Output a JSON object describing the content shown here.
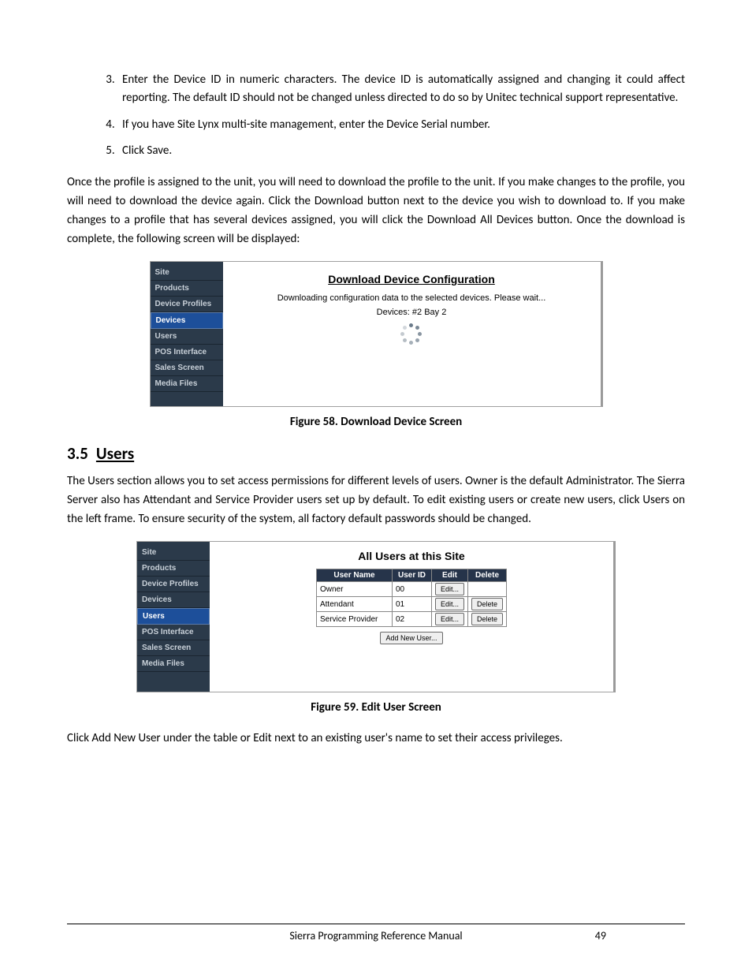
{
  "list": {
    "start": 3,
    "item3": "Enter the Device ID in numeric characters. The device ID is automatically assigned and changing it could affect reporting. The default ID should not be changed unless directed to do so by Unitec technical support representative.",
    "item4": "If you have Site Lynx multi-site management, enter the Device Serial number.",
    "item5": "Click Save."
  },
  "para1": "Once the profile is assigned to the unit, you will need to download the profile to the unit. If you make changes to the profile, you will need to download the device again. Click the Download button next to the device you wish to download to. If you make changes to a profile that has several devices assigned, you will click the Download All Devices button. Once the download is complete, the following screen will be displayed:",
  "fig58": {
    "sidebar": {
      "items": [
        "Site",
        "Products",
        "Device Profiles",
        "Devices",
        "Users",
        "POS Interface",
        "Sales Screen",
        "Media Files"
      ],
      "active_index": 3
    },
    "title": "Download Device Configuration",
    "message": "Downloading configuration data to the selected devices. Please wait...",
    "devices_line": "Devices:  #2 Bay 2",
    "caption": "Figure 58. Download Device Screen"
  },
  "section": {
    "num": "3.5",
    "title": "Users"
  },
  "para2": "The Users section allows you to set access permissions for different levels of users. Owner is the default Administrator. The Sierra Server also has Attendant and Service Provider users set up by default. To edit existing users or create new users, click Users on the left frame. To ensure security of the system, all factory default passwords should be changed.",
  "fig59": {
    "sidebar": {
      "items": [
        "Site",
        "Products",
        "Device Profiles",
        "Devices",
        "Users",
        "POS Interface",
        "Sales Screen",
        "Media Files"
      ],
      "active_index": 4
    },
    "title": "All Users at this Site",
    "columns": [
      "User Name",
      "User ID",
      "Edit",
      "Delete"
    ],
    "rows": [
      {
        "name": "Owner",
        "id": "00",
        "edit": "Edit...",
        "delete": ""
      },
      {
        "name": "Attendant",
        "id": "01",
        "edit": "Edit...",
        "delete": "Delete"
      },
      {
        "name": "Service Provider",
        "id": "02",
        "edit": "Edit...",
        "delete": "Delete"
      }
    ],
    "add_btn": "Add New User...",
    "caption": "Figure 59. Edit User Screen"
  },
  "para3": "Click Add New User under the table or Edit next to an existing user's name to set their access privileges.",
  "footer": {
    "title": "Sierra Programming Reference Manual",
    "page": "49"
  },
  "colors": {
    "sidebar_bg": "#2b3a4a",
    "sidebar_active": "#1d4f9a",
    "table_header_bg": "#26344a"
  }
}
